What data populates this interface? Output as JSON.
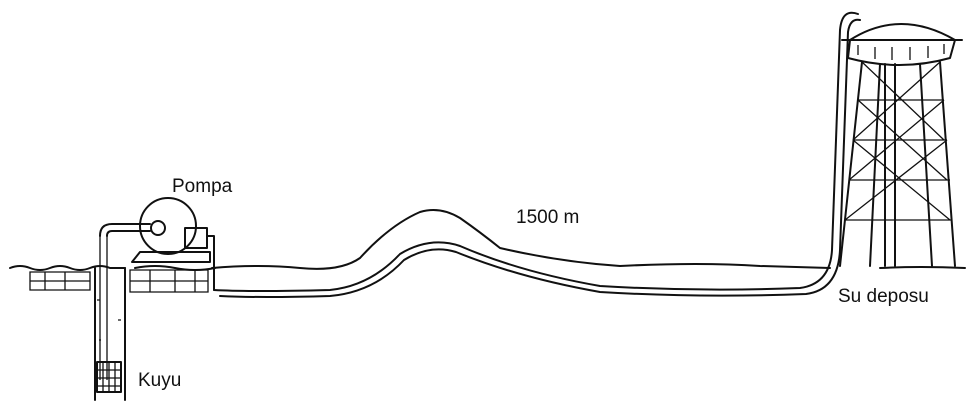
{
  "nodes": [
    {
      "label": "Pompa"
    },
    {
      "label": "Kuyu"
    },
    {
      "label": "Su deposu"
    }
  ],
  "pipe": {
    "label": "1500 m"
  }
}
